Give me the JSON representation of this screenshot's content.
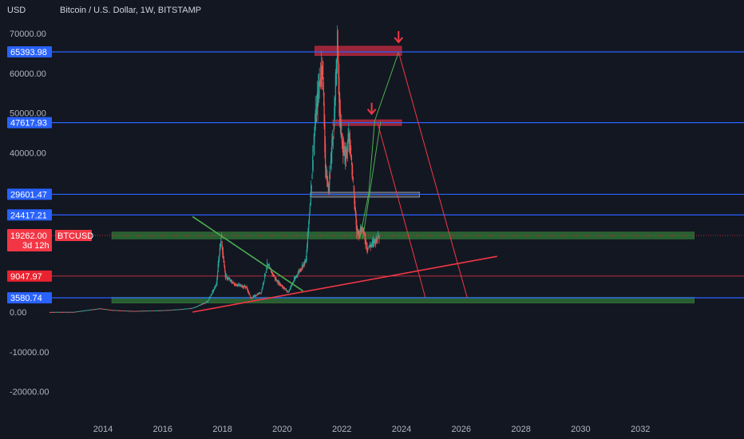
{
  "header": {
    "currency_label": "USD",
    "symbol_title": "Bitcoin / U.S. Dollar, 1W, BITSTAMP"
  },
  "colors": {
    "background": "#131722",
    "axis_text": "#b2b5be",
    "hline_blue": "#2962ff",
    "hline_red": "#f23645",
    "zone_green": "#2e6b34",
    "zone_red": "#b2283c",
    "zone_grey": "#5d606b",
    "candle_up": "#26a69a",
    "candle_down": "#ef5350",
    "trend_green": "#4caf50",
    "trend_red": "#f23645",
    "price_tag": "#f23645"
  },
  "chart_data": {
    "type": "candlestick",
    "title": "Bitcoin / U.S. Dollar, 1W, BITSTAMP",
    "ylabel": "USD",
    "ylim": [
      -28000,
      73000
    ],
    "xlim": [
      2012.2,
      2033.8
    ],
    "y_ticks": [
      70000,
      60000,
      50000,
      40000,
      0,
      -10000,
      -20000
    ],
    "y_tick_labels": [
      "70000.00",
      "60000.00",
      "50000.00",
      "40000.00",
      "0.00",
      "-10000.00",
      "-20000.00"
    ],
    "x_ticks": [
      2014,
      2016,
      2018,
      2020,
      2022,
      2024,
      2026,
      2028,
      2030,
      2032
    ],
    "x_tick_labels": [
      "2014",
      "2016",
      "2018",
      "2020",
      "2022",
      "2024",
      "2026",
      "2028",
      "2030",
      "2032"
    ],
    "grid": false,
    "price_path": [
      [
        2012.2,
        5
      ],
      [
        2013.0,
        15
      ],
      [
        2013.9,
        900
      ],
      [
        2014.3,
        500
      ],
      [
        2015.0,
        250
      ],
      [
        2016.0,
        420
      ],
      [
        2016.5,
        650
      ],
      [
        2017.0,
        1000
      ],
      [
        2017.5,
        2600
      ],
      [
        2017.8,
        7000
      ],
      [
        2017.95,
        19000
      ],
      [
        2018.1,
        9000
      ],
      [
        2018.4,
        7000
      ],
      [
        2018.8,
        6300
      ],
      [
        2018.95,
        3500
      ],
      [
        2019.3,
        5000
      ],
      [
        2019.5,
        12000
      ],
      [
        2019.8,
        8000
      ],
      [
        2020.2,
        5000
      ],
      [
        2020.5,
        9500
      ],
      [
        2020.8,
        13000
      ],
      [
        2020.95,
        29000
      ],
      [
        2021.1,
        47000
      ],
      [
        2021.25,
        58000
      ],
      [
        2021.35,
        63000
      ],
      [
        2021.45,
        37000
      ],
      [
        2021.55,
        30000
      ],
      [
        2021.75,
        50000
      ],
      [
        2021.85,
        67000
      ],
      [
        2021.95,
        47000
      ],
      [
        2022.1,
        38000
      ],
      [
        2022.25,
        45000
      ],
      [
        2022.4,
        30000
      ],
      [
        2022.5,
        20000
      ],
      [
        2022.7,
        21000
      ],
      [
        2022.85,
        16000
      ],
      [
        2023.0,
        17000
      ],
      [
        2023.25,
        19262
      ]
    ],
    "horizontal_levels": [
      {
        "value": 65393.98,
        "label": "65393.98",
        "color": "blue"
      },
      {
        "value": 47617.93,
        "label": "47617.93",
        "color": "blue"
      },
      {
        "value": 29601.47,
        "label": "29601.47",
        "color": "blue"
      },
      {
        "value": 24417.21,
        "label": "24417.21",
        "color": "blue"
      },
      {
        "value": 9047.97,
        "label": "9047.97",
        "color": "red"
      },
      {
        "value": 3580.74,
        "label": "3580.74",
        "color": "blue"
      }
    ],
    "current_price": {
      "value": 19262.0,
      "label": "19262.00",
      "countdown": "3d 12h",
      "symbol": "BTCUSD"
    },
    "zones": [
      {
        "name": "top-resistance",
        "x0": 2021.1,
        "x1": 2024.0,
        "y0": 64500,
        "y1": 66800,
        "color": "red"
      },
      {
        "name": "mid-resistance",
        "x0": 2021.7,
        "x1": 2024.0,
        "y0": 46900,
        "y1": 48300,
        "color": "red"
      },
      {
        "name": "upper-box",
        "x0": 2020.95,
        "x1": 2024.6,
        "y0": 28900,
        "y1": 30100,
        "color": "grey"
      },
      {
        "name": "green-support",
        "x0": 2014.3,
        "x1": 2033.8,
        "y0": 18400,
        "y1": 20100,
        "color": "green"
      },
      {
        "name": "bottom-support",
        "x0": 2014.3,
        "x1": 2033.8,
        "y0": 2300,
        "y1": 3700,
        "color": "green"
      }
    ],
    "trend_lines": [
      {
        "name": "descending-green",
        "color": "green",
        "points": [
          [
            2017.0,
            24000
          ],
          [
            2020.7,
            5300
          ]
        ]
      },
      {
        "name": "ascending-red",
        "color": "red",
        "points": [
          [
            2017.0,
            0
          ],
          [
            2027.2,
            14000
          ]
        ]
      },
      {
        "name": "projection-green",
        "color": "green",
        "points": [
          [
            2022.6,
            18500
          ],
          [
            2022.9,
            29800
          ],
          [
            2023.1,
            48000
          ],
          [
            2023.9,
            65300
          ]
        ]
      },
      {
        "name": "projection-green-2",
        "color": "green",
        "points": [
          [
            2022.7,
            18500
          ],
          [
            2023.3,
            47900
          ]
        ]
      },
      {
        "name": "projection-red",
        "color": "red",
        "points": [
          [
            2023.2,
            47500
          ],
          [
            2024.8,
            3600
          ]
        ]
      },
      {
        "name": "projection-red-2",
        "color": "red",
        "points": [
          [
            2023.9,
            65300
          ],
          [
            2026.2,
            3600
          ]
        ]
      }
    ],
    "arrows": [
      {
        "name": "down-arrow-top",
        "x": 2023.9,
        "y": 69000
      },
      {
        "name": "down-arrow-mid",
        "x": 2023.0,
        "y": 51000
      }
    ]
  }
}
